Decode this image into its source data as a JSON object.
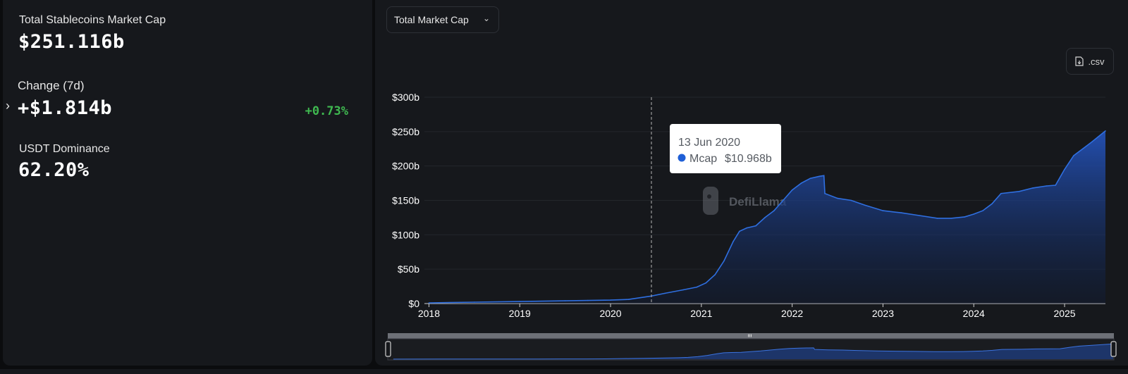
{
  "stats": {
    "market_cap_label": "Total Stablecoins Market Cap",
    "market_cap_value": "$251.116b",
    "change_label": "Change (7d)",
    "change_value": "+$1.814b",
    "change_pct": "+0.73%",
    "dominance_label": "USDT Dominance",
    "dominance_value": "62.20%"
  },
  "controls": {
    "dropdown_selected": "Total Market Cap",
    "csv_label": ".csv"
  },
  "watermark": "DefiLlama",
  "tooltip": {
    "date": "13 Jun 2020",
    "series": "Mcap",
    "value": "$10.968b"
  },
  "colors": {
    "positive": "#3fb950",
    "line": "#2f6fe0",
    "tooltip_dot": "#1f5fd6"
  },
  "chart_data": {
    "type": "area",
    "title": "",
    "xlabel": "",
    "ylabel": "",
    "x_ticks": [
      "2018",
      "2019",
      "2020",
      "2021",
      "2022",
      "2023",
      "2024",
      "2025"
    ],
    "y_ticks": [
      "$0",
      "$50b",
      "$100b",
      "$150b",
      "$200b",
      "$250b",
      "$300b"
    ],
    "ylim": [
      0,
      300
    ],
    "xlim": [
      2017.95,
      2025.45
    ],
    "grid": true,
    "highlight_x": 2020.45,
    "series": [
      {
        "name": "Mcap",
        "x": [
          2018.0,
          2018.5,
          2019.0,
          2019.5,
          2019.75,
          2020.0,
          2020.2,
          2020.45,
          2020.6,
          2020.8,
          2020.95,
          2021.05,
          2021.15,
          2021.25,
          2021.35,
          2021.42,
          2021.5,
          2021.6,
          2021.7,
          2021.8,
          2021.9,
          2022.0,
          2022.1,
          2022.2,
          2022.3,
          2022.35,
          2022.36,
          2022.5,
          2022.65,
          2022.8,
          2023.0,
          2023.2,
          2023.4,
          2023.6,
          2023.75,
          2023.9,
          2024.0,
          2024.1,
          2024.2,
          2024.3,
          2024.5,
          2024.65,
          2024.8,
          2024.9,
          2025.0,
          2025.1,
          2025.2,
          2025.3,
          2025.45
        ],
        "values": [
          1,
          2,
          3,
          4,
          4.5,
          5,
          6,
          10.968,
          15,
          20,
          24,
          30,
          42,
          62,
          90,
          105,
          110,
          113,
          125,
          135,
          150,
          165,
          175,
          182,
          185,
          186,
          160,
          153,
          150,
          143,
          135,
          132,
          128,
          124,
          124,
          126,
          130,
          135,
          145,
          160,
          163,
          168,
          171,
          172,
          195,
          215,
          225,
          235,
          251
        ]
      }
    ]
  }
}
